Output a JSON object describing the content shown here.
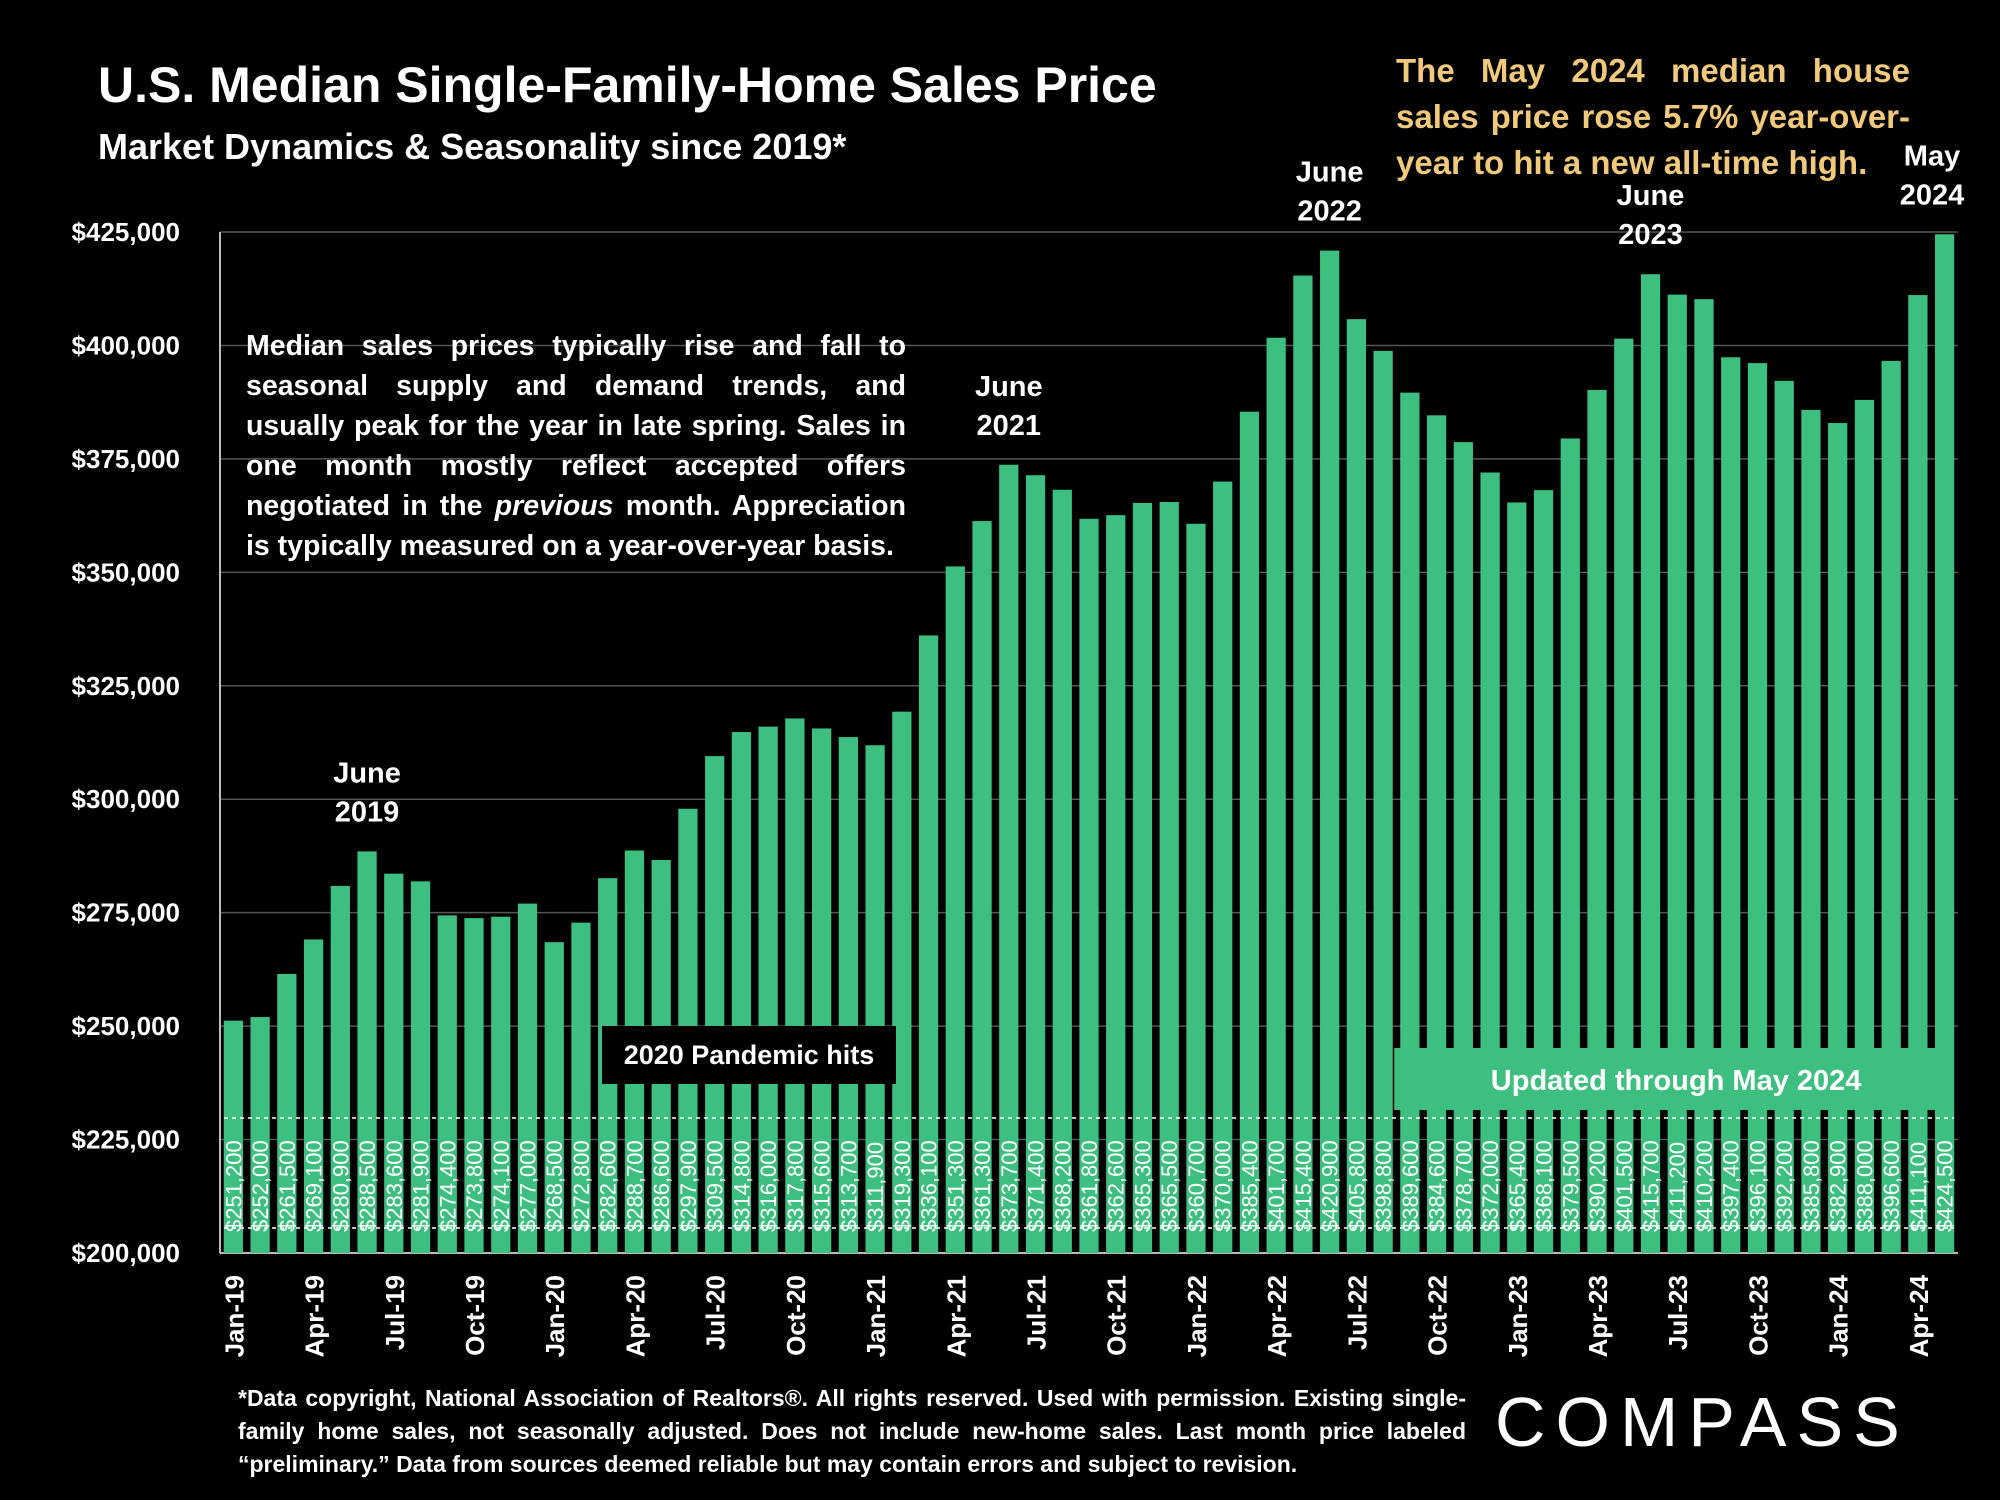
{
  "header": {
    "title": "U.S. Median Single-Family-Home Sales Price",
    "subtitle": "Market Dynamics & Seasonality since 2019*"
  },
  "headline": "The May 2024 median house sales price rose 5.7% year-over-year to hit a new all-time high.",
  "intro": {
    "before": "Median sales prices typically rise and fall to seasonal supply and demand trends, and usually peak for the year in late spring. Sales in one month mostly reflect accepted offers negotiated in the ",
    "emphasis": "previous",
    "after": " month. Appreciation is typically measured on a year-over-year basis."
  },
  "footnote": "*Data copyright, National Association of Realtors®. All rights reserved. Used with permission. Existing single-family home sales, not seasonally adjusted. Does not include new-home sales. Last month price labeled “preliminary.” Data from sources deemed reliable but may contain errors and subject to revision.",
  "logo": "COMPASS",
  "colors": {
    "background": "#000000",
    "bar": "#3dbf7f",
    "headline": "#f2c97b",
    "grid": "#555555",
    "text": "#ffffff"
  },
  "chart_data": {
    "type": "bar",
    "grid": "horizontal",
    "ylim": [
      200000,
      440000
    ],
    "y_ticks": [
      200000,
      225000,
      250000,
      275000,
      300000,
      325000,
      350000,
      375000,
      400000,
      425000
    ],
    "y_tick_labels": [
      "$200,000",
      "$225,000",
      "$250,000",
      "$275,000",
      "$300,000",
      "$325,000",
      "$350,000",
      "$375,000",
      "$400,000",
      "$425,000"
    ],
    "x_tick_labels": [
      {
        "month": "Jan-19",
        "label": "Jan-19"
      },
      {
        "month": "Apr-19",
        "label": "Apr-19"
      },
      {
        "month": "Jul-19",
        "label": "Jul-19"
      },
      {
        "month": "Oct-19",
        "label": "Oct-19"
      },
      {
        "month": "Jan-20",
        "label": "Jan-20"
      },
      {
        "month": "Apr-20",
        "label": "Apr-20"
      },
      {
        "month": "Jul-20",
        "label": "Jul-20"
      },
      {
        "month": "Oct-20",
        "label": "Oct-20"
      },
      {
        "month": "Jan-21",
        "label": "Jan-21"
      },
      {
        "month": "Apr-21",
        "label": "Apr-21"
      },
      {
        "month": "Jul-21",
        "label": "Jul-21"
      },
      {
        "month": "Oct-21",
        "label": "Oct-21"
      },
      {
        "month": "Jan-22",
        "label": "Jan-22"
      },
      {
        "month": "Apr-22",
        "label": "Apr-22"
      },
      {
        "month": "Jul-22",
        "label": "Jul-22"
      },
      {
        "month": "Oct-22",
        "label": "Oct-22"
      },
      {
        "month": "Jan-23",
        "label": "Jan-23"
      },
      {
        "month": "Apr-23",
        "label": "Apr-23"
      },
      {
        "month": "Jul-23",
        "label": "Jul-23"
      },
      {
        "month": "Oct-23",
        "label": "Oct-23"
      },
      {
        "month": "Jan-24",
        "label": "Jan-24"
      },
      {
        "month": "Apr-24",
        "label": "Apr-24"
      }
    ],
    "categories": [
      "Jan-19",
      "Feb-19",
      "Mar-19",
      "Apr-19",
      "May-19",
      "Jun-19",
      "Jul-19",
      "Aug-19",
      "Sep-19",
      "Oct-19",
      "Nov-19",
      "Dec-19",
      "Jan-20",
      "Feb-20",
      "Mar-20",
      "Apr-20",
      "May-20",
      "Jun-20",
      "Jul-20",
      "Aug-20",
      "Sep-20",
      "Oct-20",
      "Nov-20",
      "Dec-20",
      "Jan-21",
      "Feb-21",
      "Mar-21",
      "Apr-21",
      "May-21",
      "Jun-21",
      "Jul-21",
      "Aug-21",
      "Sep-21",
      "Oct-21",
      "Nov-21",
      "Dec-21",
      "Jan-22",
      "Feb-22",
      "Mar-22",
      "Apr-22",
      "May-22",
      "Jun-22",
      "Jul-22",
      "Aug-22",
      "Sep-22",
      "Oct-22",
      "Nov-22",
      "Dec-22",
      "Jan-23",
      "Feb-23",
      "Mar-23",
      "Apr-23",
      "May-23",
      "Jun-23",
      "Jul-23",
      "Aug-23",
      "Sep-23",
      "Oct-23",
      "Nov-23",
      "Dec-23",
      "Jan-24",
      "Feb-24",
      "Mar-24",
      "Apr-24",
      "May-24"
    ],
    "values": [
      251200,
      252000,
      261500,
      269100,
      280900,
      288500,
      283600,
      281900,
      274400,
      273800,
      274100,
      277000,
      268500,
      272800,
      282600,
      288700,
      286600,
      297900,
      309500,
      314800,
      316000,
      317800,
      315600,
      313700,
      311900,
      319300,
      336100,
      351300,
      361300,
      373700,
      371400,
      368200,
      361800,
      362600,
      365300,
      365500,
      360700,
      370000,
      385400,
      401700,
      415400,
      420900,
      405800,
      398800,
      389600,
      384600,
      378700,
      372000,
      365400,
      368100,
      379500,
      390200,
      401500,
      415700,
      411200,
      410200,
      397400,
      396100,
      392200,
      385800,
      382900,
      388000,
      396600,
      411100,
      424500
    ],
    "value_labels": [
      "$251,200",
      "$252,000",
      "$261,500",
      "$269,100",
      "$280,900",
      "$288,500",
      "$283,600",
      "$281,900",
      "$274,400",
      "$273,800",
      "$274,100",
      "$277,000",
      "$268,500",
      "$272,800",
      "$282,600",
      "$288,700",
      "$286,600",
      "$297,900",
      "$309,500",
      "$314,800",
      "$316,000",
      "$317,800",
      "$315,600",
      "$313,700",
      "$311,900",
      "$319,300",
      "$336,100",
      "$351,300",
      "$361,300",
      "$373,700",
      "$371,400",
      "$368,200",
      "$361,800",
      "$362,600",
      "$365,300",
      "$365,500",
      "$360,700",
      "$370,000",
      "$385,400",
      "$401,700",
      "$415,400",
      "$420,900",
      "$405,800",
      "$398,800",
      "$389,600",
      "$384,600",
      "$378,700",
      "$372,000",
      "$365,400",
      "$368,100",
      "$379,500",
      "$390,200",
      "$401,500",
      "$415,700",
      "$411,200",
      "$410,200",
      "$397,400",
      "$396,100",
      "$392,200",
      "$385,800",
      "$382,900",
      "$388,000",
      "$396,600",
      "$411,100",
      "$424,500"
    ],
    "annotations": [
      {
        "month": "Jun-19",
        "lines": [
          "June",
          "2019"
        ]
      },
      {
        "month": "Jun-21",
        "lines": [
          "June",
          "2021"
        ]
      },
      {
        "month": "Jun-22",
        "lines": [
          "June",
          "2022"
        ]
      },
      {
        "month": "Jun-23",
        "lines": [
          "June",
          "2023"
        ]
      },
      {
        "month": "May-24",
        "lines": [
          "May",
          "2024"
        ]
      }
    ],
    "callouts": {
      "pandemic": "2020 Pandemic hits",
      "updated": "Updated through May 2024"
    }
  }
}
